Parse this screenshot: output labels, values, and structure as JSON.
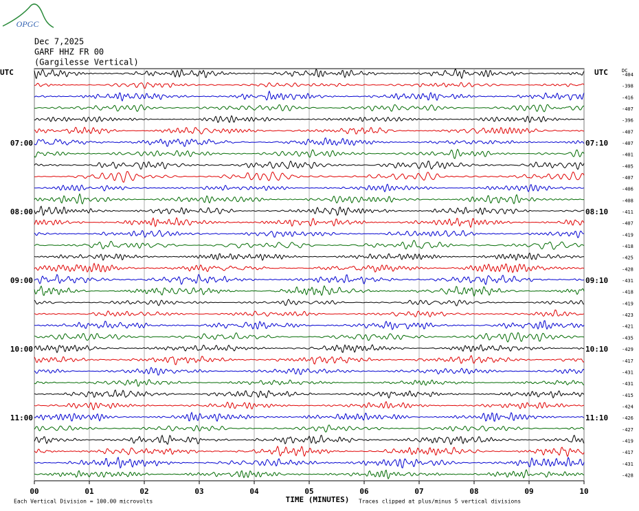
{
  "chart_data": {
    "type": "helicorder",
    "logo": "OPGC",
    "date": "Dec 7,2025",
    "station": "GARF HHZ FR 00",
    "location": "(Gargilesse Vertical)",
    "left_header": "UTC",
    "right_header": "UTC",
    "offset_header": "DC",
    "x_label": "TIME (MINUTES)",
    "scale_note": "Each Vertical Division =  100.00 microvolts",
    "clip_note": "Traces clipped at plus/minus 5 vertical divisions",
    "xlim": [
      0,
      10
    ],
    "xticks": [
      {
        "value": 0,
        "label": "00"
      },
      {
        "value": 1,
        "label": "01"
      },
      {
        "value": 2,
        "label": "02"
      },
      {
        "value": 3,
        "label": "03"
      },
      {
        "value": 4,
        "label": "04"
      },
      {
        "value": 5,
        "label": "05"
      },
      {
        "value": 6,
        "label": "06"
      },
      {
        "value": 7,
        "label": "07"
      },
      {
        "value": 8,
        "label": "08"
      },
      {
        "value": 9,
        "label": "09"
      },
      {
        "value": 10,
        "label": "10"
      }
    ],
    "colors": [
      "#000000",
      "#e00000",
      "#0000d0",
      "#006a00"
    ],
    "row_labels_left": [
      null,
      null,
      null,
      null,
      null,
      null,
      "07:00",
      null,
      null,
      null,
      null,
      null,
      "08:00",
      null,
      null,
      null,
      null,
      null,
      "09:00",
      null,
      null,
      null,
      null,
      null,
      "10:00",
      null,
      null,
      null,
      null,
      null,
      "11:00",
      null,
      null,
      null,
      null,
      null
    ],
    "row_labels_right": [
      null,
      null,
      null,
      null,
      null,
      null,
      "07:10",
      null,
      null,
      null,
      null,
      null,
      "08:10",
      null,
      null,
      null,
      null,
      null,
      "09:10",
      null,
      null,
      null,
      null,
      null,
      "10:10",
      null,
      null,
      null,
      null,
      null,
      "11:10",
      null,
      null,
      null,
      null,
      null
    ],
    "offsets": [
      -404,
      -398,
      -416,
      -407,
      -396,
      -407,
      -407,
      -401,
      -405,
      -407,
      -406,
      -408,
      -411,
      -407,
      -419,
      -418,
      -425,
      -428,
      -431,
      -418,
      -419,
      -423,
      -421,
      -435,
      -429,
      -417,
      -431,
      -431,
      -415,
      -424,
      -426,
      -427,
      -419,
      -417,
      -431,
      -428
    ]
  }
}
